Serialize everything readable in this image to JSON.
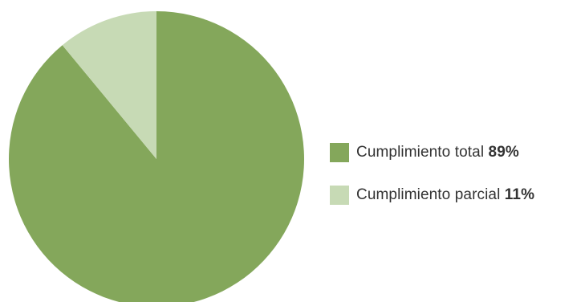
{
  "chart_data": {
    "type": "pie",
    "title": "",
    "slices": [
      {
        "label": "Cumplimiento total",
        "value": 89,
        "value_label": "89%",
        "color": "#84a75b"
      },
      {
        "label": "Cumplimiento parcial",
        "value": 11,
        "value_label": "11%",
        "color": "#c7dab5"
      }
    ],
    "start_angle": "12 o'clock",
    "direction": "clockwise",
    "legend_position": "right"
  }
}
